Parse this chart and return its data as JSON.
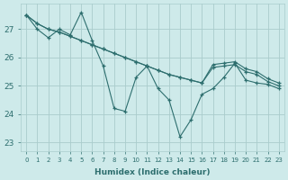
{
  "xlabel": "Humidex (Indice chaleur)",
  "bg_color": "#ceeaea",
  "grid_color": "#aacccc",
  "line_color": "#2d6e6e",
  "x_values": [
    0,
    1,
    2,
    3,
    4,
    5,
    6,
    7,
    8,
    9,
    10,
    11,
    12,
    13,
    14,
    15,
    16,
    17,
    18,
    19,
    20,
    21,
    22,
    23
  ],
  "line1": [
    27.5,
    27.0,
    26.7,
    27.0,
    26.8,
    27.6,
    26.6,
    25.7,
    24.2,
    24.1,
    25.3,
    25.7,
    24.9,
    24.5,
    23.2,
    23.8,
    24.7,
    24.9,
    25.3,
    25.8,
    25.2,
    25.1,
    25.05,
    24.9
  ],
  "line2": [
    27.5,
    27.2,
    27.0,
    26.9,
    26.75,
    26.6,
    26.45,
    26.3,
    26.15,
    26.0,
    25.85,
    25.7,
    25.55,
    25.4,
    25.3,
    25.2,
    25.1,
    25.65,
    25.7,
    25.75,
    25.5,
    25.4,
    25.15,
    25.0
  ],
  "line3": [
    27.5,
    27.2,
    27.0,
    26.9,
    26.75,
    26.6,
    26.45,
    26.3,
    26.15,
    26.0,
    25.85,
    25.7,
    25.55,
    25.4,
    25.3,
    25.2,
    25.1,
    25.75,
    25.8,
    25.85,
    25.6,
    25.5,
    25.25,
    25.1
  ],
  "ylim": [
    22.7,
    27.9
  ],
  "yticks": [
    23,
    24,
    25,
    26,
    27
  ],
  "xlim": [
    -0.5,
    23.5
  ],
  "xticks": [
    0,
    1,
    2,
    3,
    4,
    5,
    6,
    7,
    8,
    9,
    10,
    11,
    12,
    13,
    14,
    15,
    16,
    17,
    18,
    19,
    20,
    21,
    22,
    23
  ]
}
